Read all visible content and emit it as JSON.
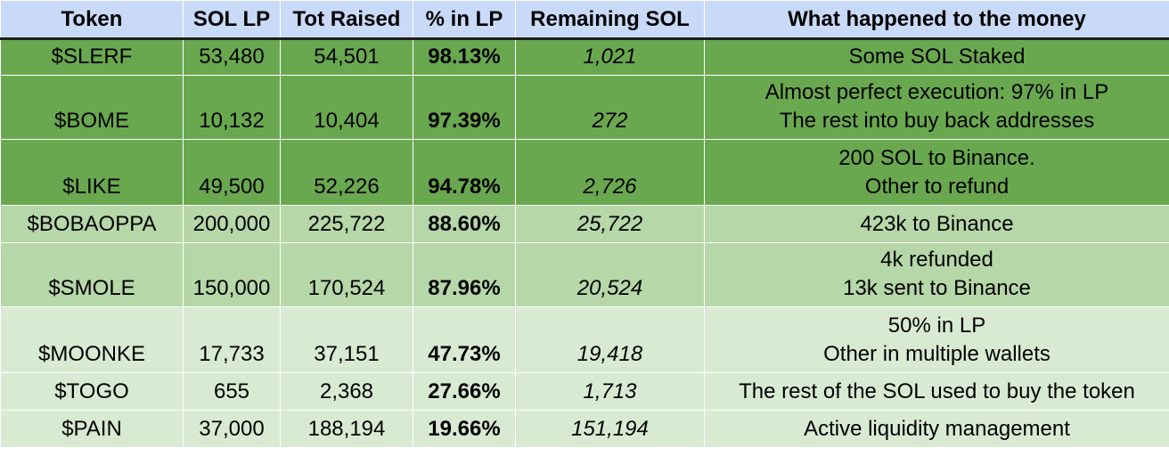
{
  "columns": [
    "Token",
    "SOL LP",
    "Tot Raised",
    "% in LP",
    "Remaining SOL",
    "What happened to the money"
  ],
  "rows": [
    {
      "token": "$SLERF",
      "sol_lp": "53,480",
      "tot_raised": "54,501",
      "pct_lp": "98.13%",
      "remaining": "1,021",
      "notes": [
        "Some SOL Staked"
      ],
      "tier": "dark-green",
      "color": "#6aa84f"
    },
    {
      "token": "$BOME",
      "sol_lp": "10,132",
      "tot_raised": "10,404",
      "pct_lp": "97.39%",
      "remaining": "272",
      "notes": [
        "Almost perfect execution: 97% in LP",
        "The rest into buy back addresses"
      ],
      "tier": "dark-green",
      "color": "#6aa84f"
    },
    {
      "token": "$LIKE",
      "sol_lp": "49,500",
      "tot_raised": "52,226",
      "pct_lp": "94.78%",
      "remaining": "2,726",
      "notes": [
        "200 SOL to Binance.",
        "Other to refund"
      ],
      "tier": "dark-green",
      "color": "#6aa84f"
    },
    {
      "token": "$BOBAOPPA",
      "sol_lp": "200,000",
      "tot_raised": "225,722",
      "pct_lp": "88.60%",
      "remaining": "25,722",
      "notes": [
        "423k to Binance"
      ],
      "tier": "mid-green",
      "color": "#b6d7a8"
    },
    {
      "token": "$SMOLE",
      "sol_lp": "150,000",
      "tot_raised": "170,524",
      "pct_lp": "87.96%",
      "remaining": "20,524",
      "notes": [
        "4k refunded",
        "13k sent to Binance"
      ],
      "tier": "mid-green",
      "color": "#b6d7a8"
    },
    {
      "token": "$MOONKE",
      "sol_lp": "17,733",
      "tot_raised": "37,151",
      "pct_lp": "47.73%",
      "remaining": "19,418",
      "notes": [
        "50% in LP",
        "Other in multiple wallets"
      ],
      "tier": "light-green",
      "color": "#d9ead3"
    },
    {
      "token": "$TOGO",
      "sol_lp": "655",
      "tot_raised": "2,368",
      "pct_lp": "27.66%",
      "remaining": "1,713",
      "notes": [
        "The rest of the SOL used to buy the token"
      ],
      "tier": "light-green",
      "color": "#d9ead3"
    },
    {
      "token": "$PAIN",
      "sol_lp": "37,000",
      "tot_raised": "188,194",
      "pct_lp": "19.66%",
      "remaining": "151,194",
      "notes": [
        "Active liquidity management"
      ],
      "tier": "light-green",
      "color": "#d9ead3"
    }
  ],
  "colors": {
    "header": "#c9daf8",
    "dark_green": "#6aa84f",
    "mid_green": "#b6d7a8",
    "light_green": "#d9ead3"
  }
}
